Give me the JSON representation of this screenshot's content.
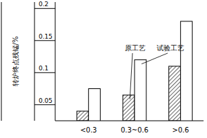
{
  "chart_data": {
    "type": "bar",
    "y_label": "转炉终点残锰/%",
    "categories": [
      "<0.3",
      "0.3~0.6",
      ">0.6"
    ],
    "series": [
      {
        "name": "原工艺",
        "color": "#000000",
        "values": [
          0.04,
          0.065,
          0.11
        ]
      },
      {
        "name": "试验工艺",
        "color": "#000000",
        "values": [
          0.075,
          0.12,
          0.18
        ]
      }
    ],
    "ylim": [
      0.025,
      0.21
    ],
    "yticks": [
      0.05,
      0.1,
      0.15,
      0.2
    ],
    "grid": false
  }
}
